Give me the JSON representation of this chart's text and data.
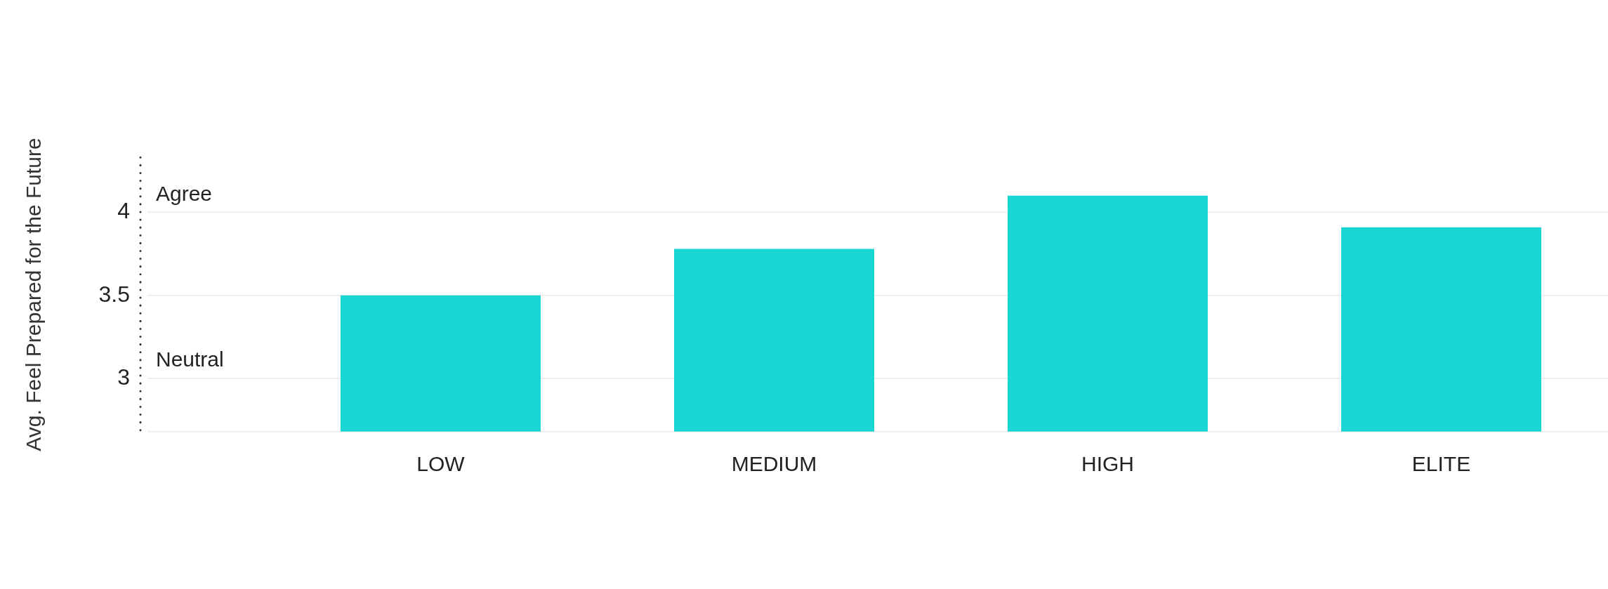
{
  "chart_data": {
    "type": "bar",
    "ylabel": "Avg. Feel Prepared for the Future",
    "categories": [
      "LOW",
      "MEDIUM",
      "HIGH",
      "ELITE"
    ],
    "values": [
      3.5,
      3.78,
      4.1,
      3.91
    ],
    "color": "#1ad6d2",
    "ylim": [
      2.68,
      4.33
    ],
    "yticks": [
      3,
      3.5,
      4
    ],
    "grid": "y",
    "annotations": [
      "Agree",
      "Neutral"
    ]
  }
}
